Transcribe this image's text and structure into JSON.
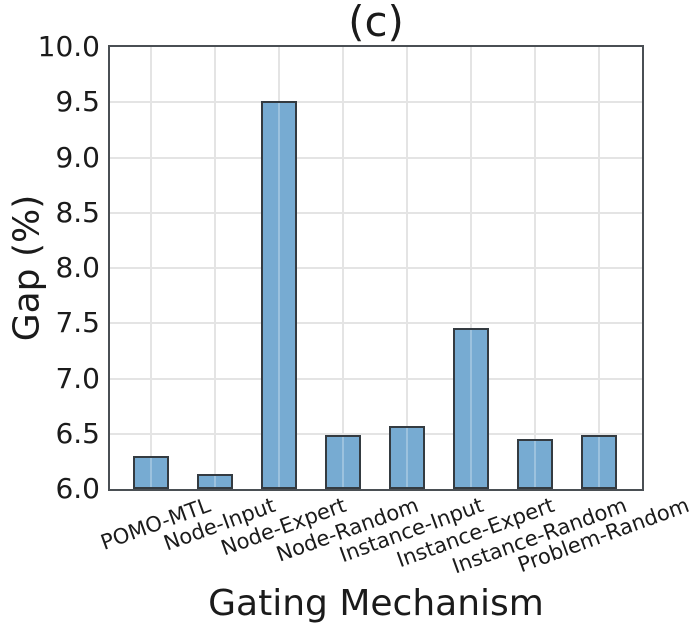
{
  "chart_data": {
    "type": "bar",
    "title": "(c)",
    "xlabel": "Gating Mechanism",
    "ylabel": "Gap (%)",
    "categories": [
      "POMO-MTL",
      "Node-Input",
      "Node-Expert",
      "Node-Random",
      "Instance-Input",
      "Instance-Expert",
      "Instance-Random",
      "Problem-Random"
    ],
    "values": [
      6.3,
      6.14,
      9.51,
      6.49,
      6.57,
      7.46,
      6.45,
      6.49
    ],
    "ylim": [
      6.0,
      10.0
    ],
    "ytick_step": 0.5,
    "ytick_decimals": 1,
    "xtick_rotation_deg": 20,
    "grid": true,
    "legend": "none",
    "colors": {
      "bar_fill": "#77ABD2",
      "bar_edge": "#343B41",
      "grid": "#E4E4E4",
      "spine": "#4A4F54",
      "text": "#1B1B1B"
    }
  }
}
